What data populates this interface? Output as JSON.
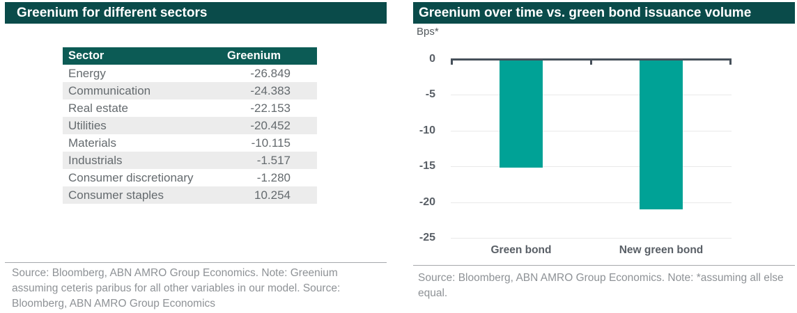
{
  "left_panel": {
    "title": "Greenium for different sectors",
    "footnote": "Source: Bloomberg, ABN AMRO Group Economics. Note: Greenium assuming ceteris paribus for all other variables in our model. Source: Bloomberg, ABN AMRO Group Economics"
  },
  "right_panel": {
    "title": "Greenium over time vs. green bond issuance volume",
    "unit_label": "Bps*",
    "footnote": "Source: Bloomberg, ABN AMRO Group Economics. Note: *assuming all else equal."
  },
  "colors": {
    "title_bar_bg": "#0a4b4a",
    "table_header_bg": "#0c5b55",
    "accent_teal": "#00a296",
    "row_alt_bg": "#ececec",
    "axis_line": "#46505a",
    "gridline": "#e9e9e9",
    "body_text_gray": "#646a6e",
    "footnote_gray": "#8e9296"
  },
  "chart_data": [
    {
      "type": "table",
      "title": "Greenium for different sectors",
      "columns": [
        "Sector",
        "Greenium"
      ],
      "rows": [
        [
          "Energy",
          "-26.849"
        ],
        [
          "Communication",
          "-24.383"
        ],
        [
          "Real estate",
          "-22.153"
        ],
        [
          "Utilities",
          "-20.452"
        ],
        [
          "Materials",
          "-10.115"
        ],
        [
          "Industrials",
          "-1.517"
        ],
        [
          "Consumer discretionary",
          "-1.280"
        ],
        [
          "Consumer staples",
          "10.254"
        ]
      ]
    },
    {
      "type": "bar",
      "title": "Greenium over time vs. green bond issuance volume",
      "ylabel": "Bps*",
      "xlabel": "",
      "categories": [
        "Green bond",
        "New green bond"
      ],
      "values": [
        -15.2,
        -21.0
      ],
      "ylim": [
        -25,
        0
      ],
      "yticks": [
        0,
        -5,
        -10,
        -15,
        -20,
        -25
      ],
      "grid": true,
      "legend_position": "none",
      "bar_color": "#00a296"
    }
  ]
}
